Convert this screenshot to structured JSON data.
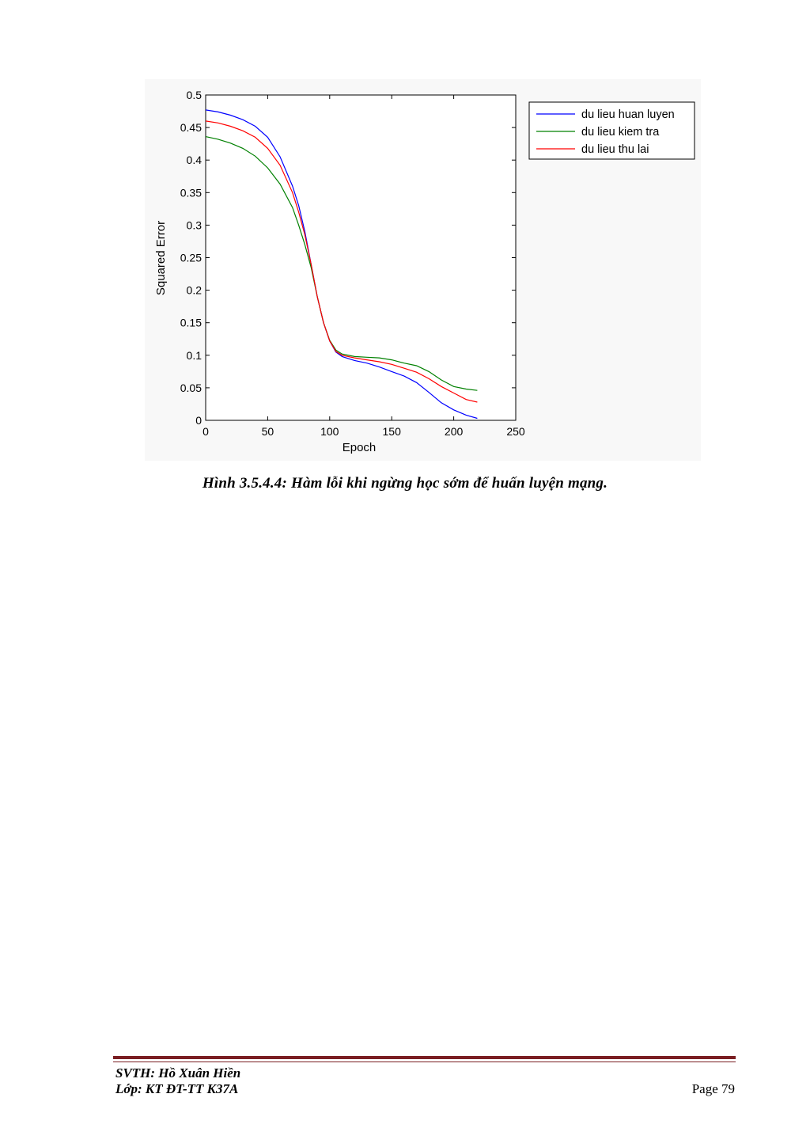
{
  "chart_data": {
    "type": "line",
    "title": "",
    "xlabel": "Epoch",
    "ylabel": "Squared Error",
    "xlim": [
      0,
      250
    ],
    "ylim": [
      0,
      0.5
    ],
    "xticks": [
      "0",
      "50",
      "100",
      "150",
      "200",
      "250"
    ],
    "yticks": [
      "0",
      "0.05",
      "0.1",
      "0.15",
      "0.2",
      "0.25",
      "0.3",
      "0.35",
      "0.4",
      "0.45",
      "0.5"
    ],
    "grid": false,
    "legend_position": "outside-top-right",
    "x": [
      0,
      10,
      20,
      30,
      40,
      50,
      60,
      70,
      75,
      80,
      85,
      90,
      95,
      100,
      105,
      110,
      120,
      130,
      140,
      150,
      160,
      170,
      180,
      190,
      200,
      210,
      219
    ],
    "series": [
      {
        "name": "du lieu huan luyen",
        "color": "#0000ff",
        "values": [
          0.477,
          0.474,
          0.469,
          0.462,
          0.452,
          0.435,
          0.405,
          0.36,
          0.33,
          0.29,
          0.24,
          0.19,
          0.15,
          0.122,
          0.105,
          0.098,
          0.092,
          0.088,
          0.082,
          0.075,
          0.068,
          0.058,
          0.043,
          0.027,
          0.016,
          0.008,
          0.003
        ]
      },
      {
        "name": "du lieu kiem tra",
        "color": "#008000",
        "values": [
          0.436,
          0.432,
          0.426,
          0.418,
          0.406,
          0.388,
          0.363,
          0.327,
          0.3,
          0.27,
          0.235,
          0.19,
          0.15,
          0.123,
          0.108,
          0.102,
          0.098,
          0.097,
          0.096,
          0.093,
          0.088,
          0.084,
          0.075,
          0.062,
          0.052,
          0.048,
          0.046
        ]
      },
      {
        "name": "du lieu thu lai",
        "color": "#ff0000",
        "values": [
          0.46,
          0.457,
          0.452,
          0.445,
          0.435,
          0.418,
          0.392,
          0.35,
          0.32,
          0.285,
          0.24,
          0.19,
          0.15,
          0.122,
          0.106,
          0.1,
          0.096,
          0.093,
          0.09,
          0.086,
          0.08,
          0.074,
          0.064,
          0.052,
          0.042,
          0.032,
          0.028
        ]
      }
    ]
  },
  "caption": "Hình  3.5.4.4: Hàm lỗi khi ngừng học sớm để huấn luyện mạng.",
  "footer": {
    "author": "SVTH: Hồ Xuân Hiền",
    "class": "Lớp: KT ĐT-TT K37A",
    "page": "Page 79"
  }
}
